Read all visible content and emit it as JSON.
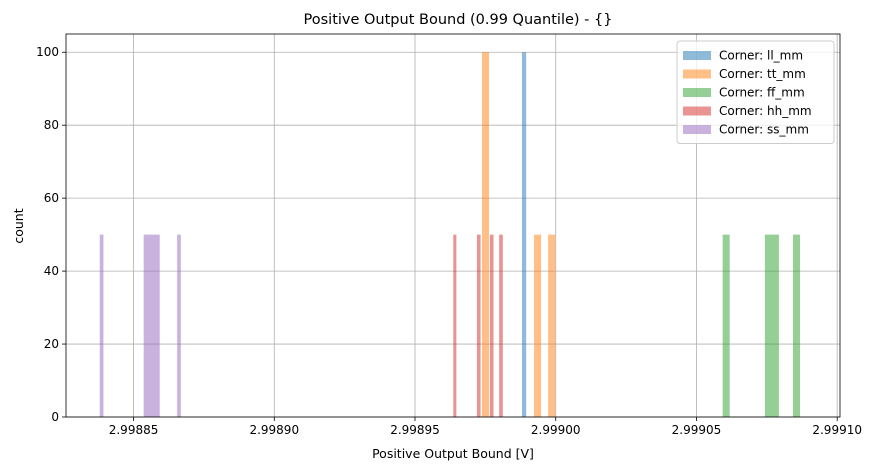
{
  "chart_data": {
    "type": "bar",
    "title": "Positive Output Bound (0.99 Quantile) - {}",
    "xlabel": "Positive Output Bound [V]",
    "ylabel": "count",
    "xlim": [
      2.998826,
      2.999101
    ],
    "ylim": [
      0,
      105
    ],
    "xticks": [
      2.99885,
      2.9989,
      2.99895,
      2.999,
      2.99905,
      2.9991
    ],
    "xtick_labels": [
      "2.99885",
      "2.99890",
      "2.99895",
      "2.99900",
      "2.99905",
      "2.99910"
    ],
    "yticks": [
      0,
      20,
      40,
      60,
      80,
      100
    ],
    "ytick_labels": [
      "0",
      "20",
      "40",
      "60",
      "80",
      "100"
    ],
    "grid": true,
    "legend_position": "top-right",
    "series": [
      {
        "name": "Corner: ll_mm",
        "color": "#1f77b4",
        "bars": [
          {
            "x0": 2.998988,
            "x1": 2.9989895,
            "count": 100
          }
        ]
      },
      {
        "name": "Corner: tt_mm",
        "color": "#ff7f0e",
        "bars": [
          {
            "x0": 2.9989738,
            "x1": 2.9989763,
            "count": 100
          },
          {
            "x0": 2.9989923,
            "x1": 2.9989948,
            "count": 50
          },
          {
            "x0": 2.9989973,
            "x1": 2.9989998,
            "count": 50
          }
        ]
      },
      {
        "name": "Corner: ff_mm",
        "color": "#2ca02c",
        "bars": [
          {
            "x0": 2.9990593,
            "x1": 2.9990618,
            "count": 50
          },
          {
            "x0": 2.9990743,
            "x1": 2.9990793,
            "count": 50
          },
          {
            "x0": 2.9990843,
            "x1": 2.9990868,
            "count": 50
          }
        ]
      },
      {
        "name": "Corner: hh_mm",
        "color": "#d62728",
        "bars": [
          {
            "x0": 2.9989636,
            "x1": 2.9989647,
            "count": 50
          },
          {
            "x0": 2.998972,
            "x1": 2.9989733,
            "count": 50
          },
          {
            "x0": 2.9989766,
            "x1": 2.9989779,
            "count": 50
          },
          {
            "x0": 2.9989799,
            "x1": 2.9989812,
            "count": 50
          }
        ]
      },
      {
        "name": "Corner: ss_mm",
        "color": "#9467bd",
        "bars": [
          {
            "x0": 2.998838,
            "x1": 2.9988393,
            "count": 50
          },
          {
            "x0": 2.9988536,
            "x1": 2.9988593,
            "count": 50
          },
          {
            "x0": 2.9988655,
            "x1": 2.9988668,
            "count": 50
          }
        ]
      }
    ]
  }
}
